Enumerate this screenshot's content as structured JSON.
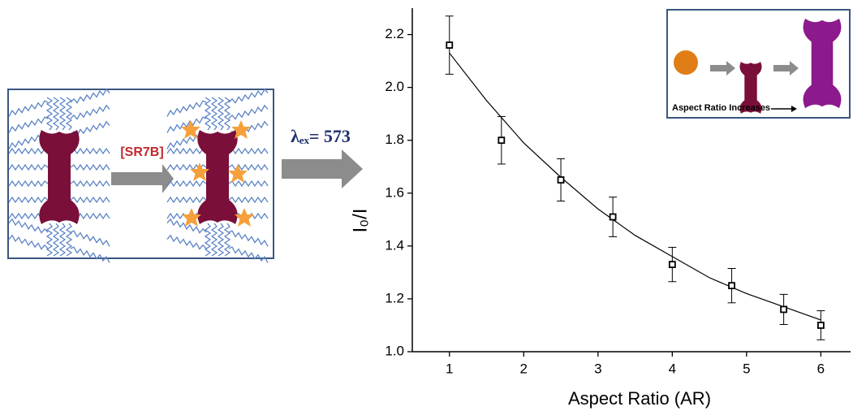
{
  "chart_data": {
    "type": "scatter",
    "x_label": "Aspect Ratio (AR)",
    "y_label": "I₀/I",
    "x": [
      1,
      1.7,
      2.5,
      3.2,
      4,
      4.8,
      5.5,
      6
    ],
    "series": [
      {
        "values": [
          2.16,
          1.8,
          1.65,
          1.51,
          1.33,
          1.25,
          1.16,
          1.1
        ],
        "errors": [
          0.11,
          0.09,
          0.08,
          0.075,
          0.065,
          0.065,
          0.057,
          0.055
        ],
        "color": "#000000"
      }
    ],
    "fit": {
      "x": [
        1,
        1.5,
        2,
        2.5,
        3,
        3.5,
        4,
        4.5,
        5,
        5.5,
        6
      ],
      "values": [
        2.13,
        1.95,
        1.79,
        1.66,
        1.54,
        1.44,
        1.36,
        1.28,
        1.22,
        1.17,
        1.12
      ],
      "color": "#000000"
    },
    "xlim": [
      0.5,
      6.4
    ],
    "ylim": [
      1.0,
      2.3
    ],
    "xticks": [
      1,
      2,
      3,
      4,
      5,
      6
    ],
    "yticks": [
      {
        "value": 1.0,
        "label": "1.0"
      },
      1.2,
      1.4,
      1.6,
      1.8,
      {
        "value": 2.0,
        "label": "2.0"
      },
      2.2
    ],
    "annotations": [
      "[SR7B]",
      "λₑₓ= 573",
      "Aspect Ratio Increases"
    ]
  }
}
